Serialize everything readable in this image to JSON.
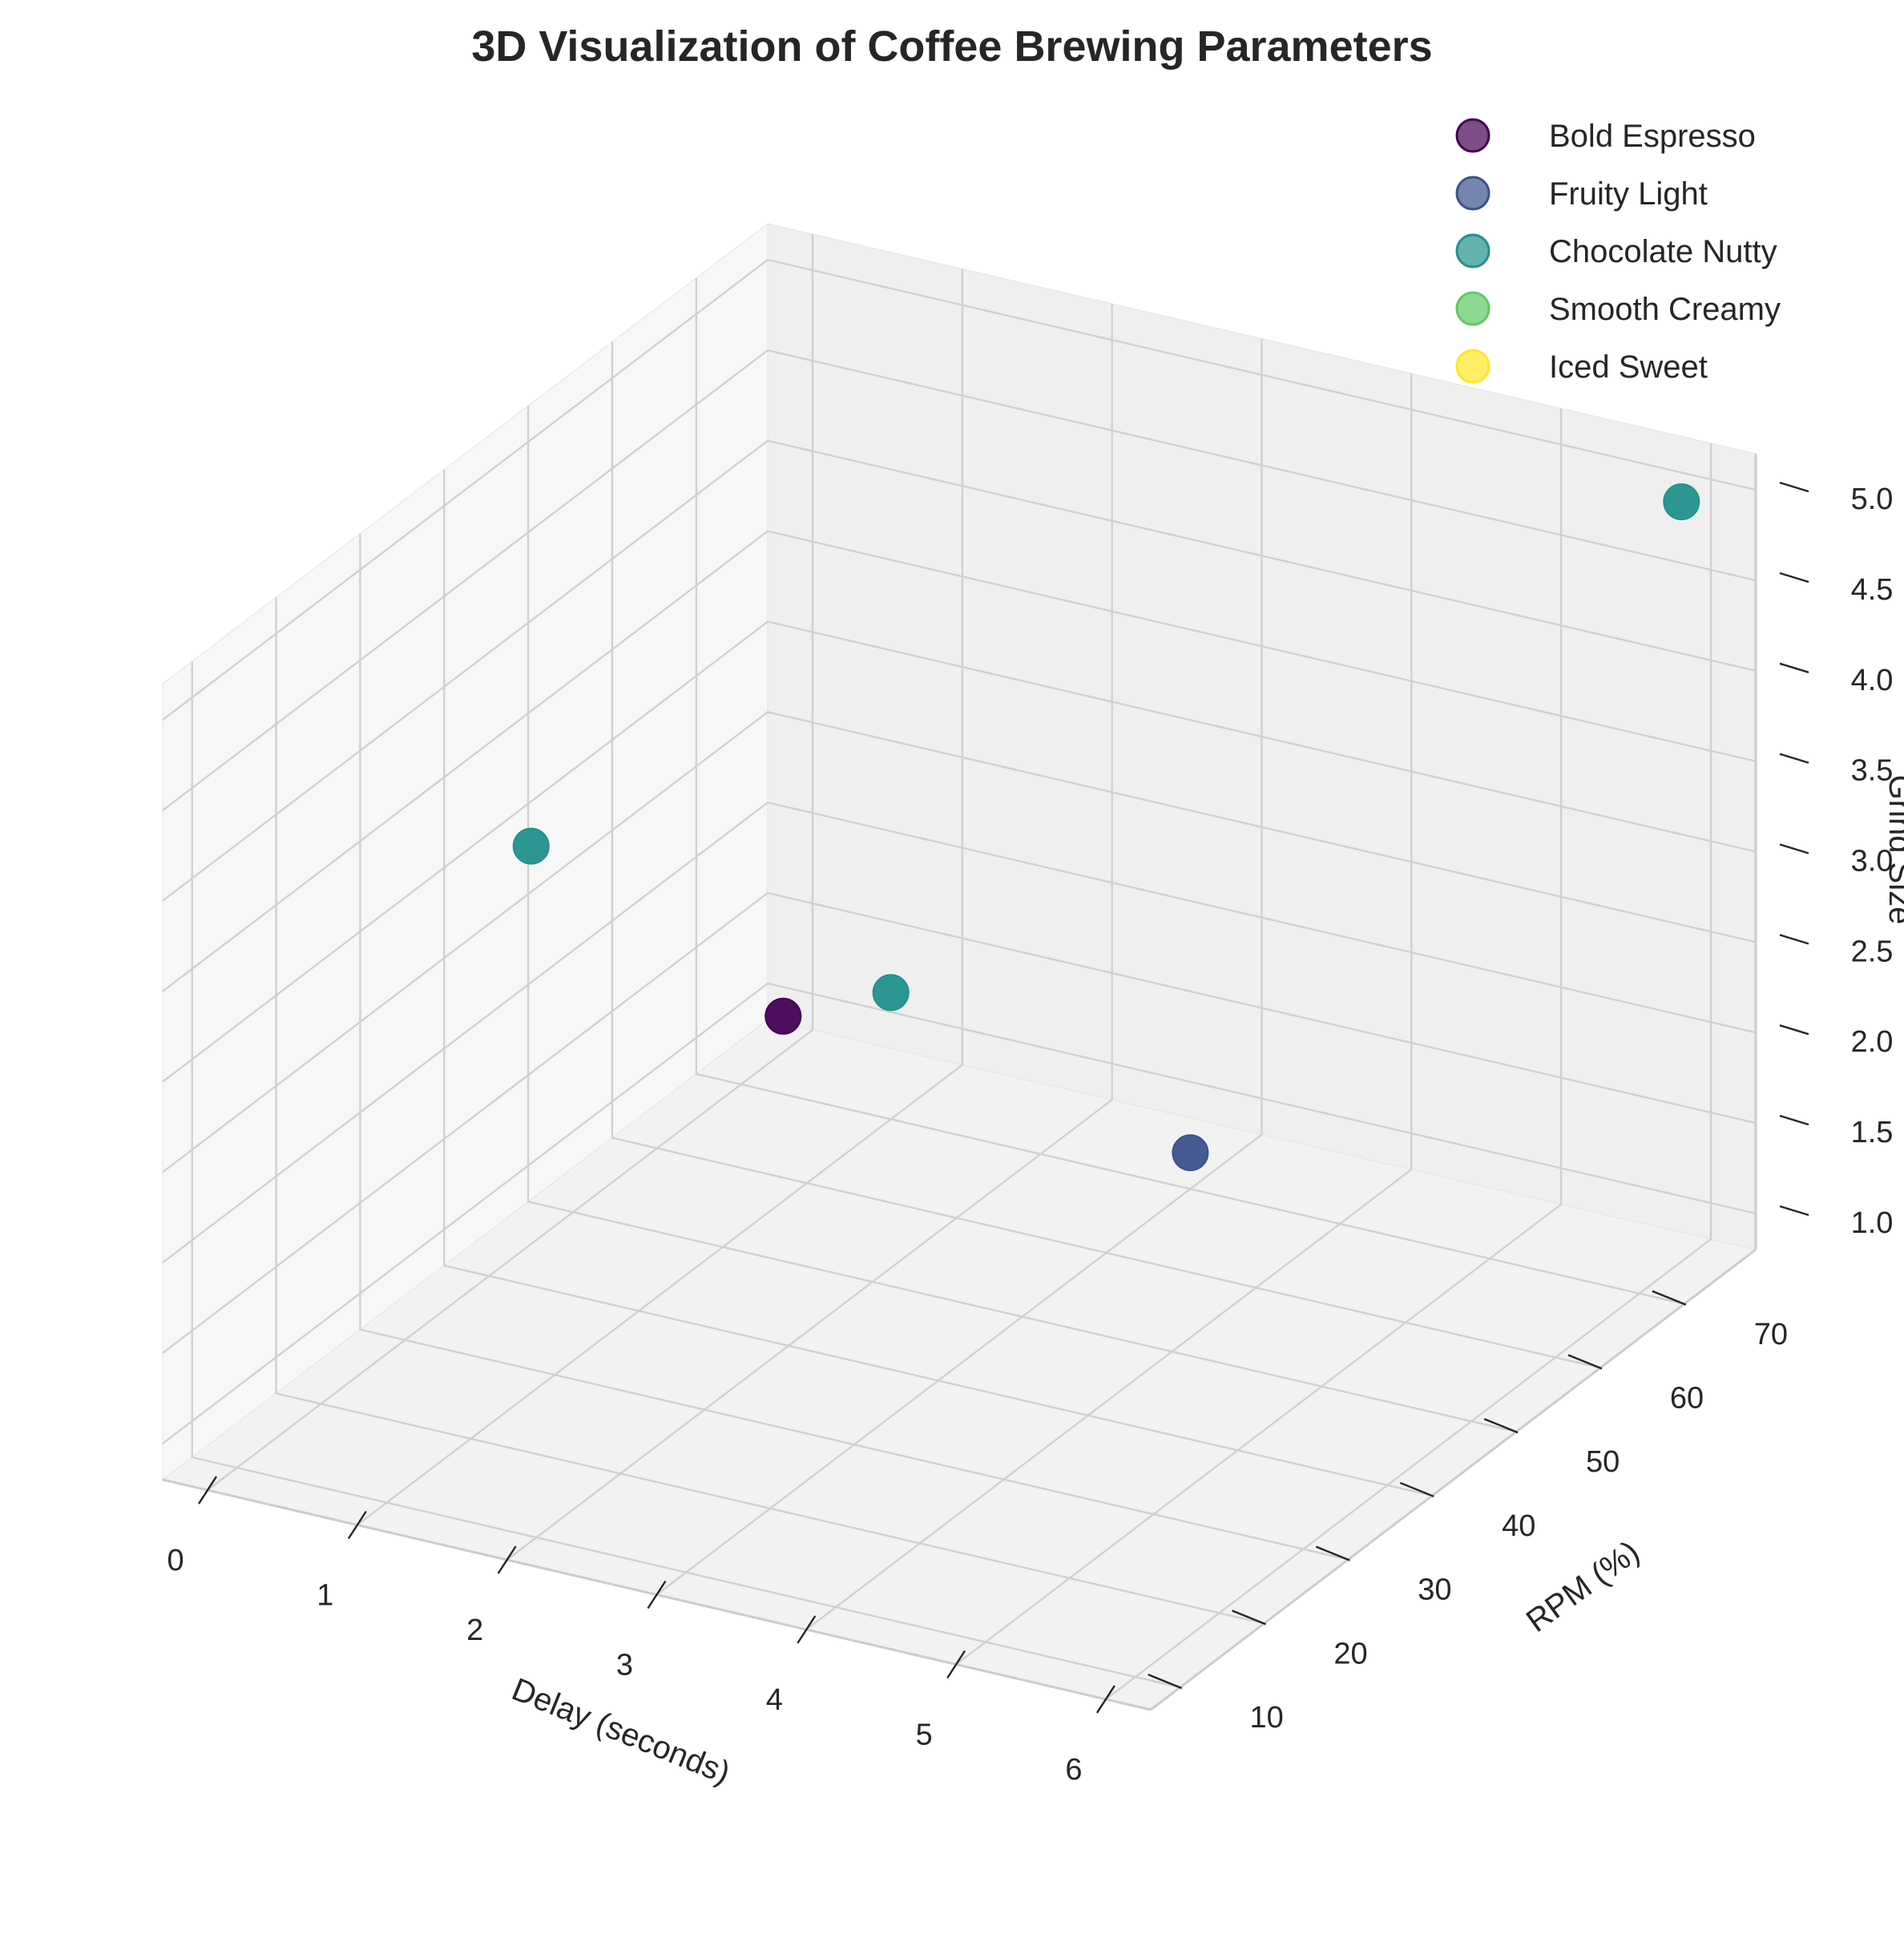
{
  "chart_data": {
    "type": "scatter",
    "title": "3D Visualization of Coffee Brewing Parameters",
    "xlabel": "Delay (seconds)",
    "ylabel": "RPM (%)",
    "zlabel": "Grind Size",
    "xlim": [
      -0.3,
      6.3
    ],
    "ylim": [
      6.5,
      78.5
    ],
    "zlim": [
      0.8,
      5.2
    ],
    "xticks": [
      0,
      1,
      2,
      3,
      4,
      5,
      6
    ],
    "yticks": [
      10,
      20,
      30,
      40,
      50,
      60,
      70
    ],
    "zticks": [
      1.0,
      1.5,
      2.0,
      2.5,
      3.0,
      3.5,
      4.0,
      4.5,
      5.0
    ],
    "zticks_text": [
      "1.0",
      "1.5",
      "2.0",
      "2.5",
      "3.0",
      "3.5",
      "4.0",
      "4.5",
      "5.0"
    ],
    "grid": true,
    "legend_position": "top-right",
    "projection": "3d",
    "series": [
      {
        "name": "Bold Espresso",
        "color": "#440154",
        "points": [
          {
            "x": 0,
            "y": 75,
            "z": 1.0
          }
        ]
      },
      {
        "name": "Fruity Light",
        "color": "#3b528b",
        "points": [
          {
            "x": 3,
            "y": 70,
            "z": 1.0
          }
        ]
      },
      {
        "name": "Chocolate Nutty",
        "color": "#21918c",
        "points": [
          {
            "x": 0,
            "y": 45,
            "z": 3.0
          },
          {
            "x": 1,
            "y": 70,
            "z": 1.5
          },
          {
            "x": 6,
            "y": 75,
            "z": 5.0
          }
        ]
      },
      {
        "name": "Smooth Creamy",
        "color": "#5ec962",
        "points": []
      },
      {
        "name": "Iced Sweet",
        "color": "#fde725",
        "points": []
      }
    ]
  }
}
